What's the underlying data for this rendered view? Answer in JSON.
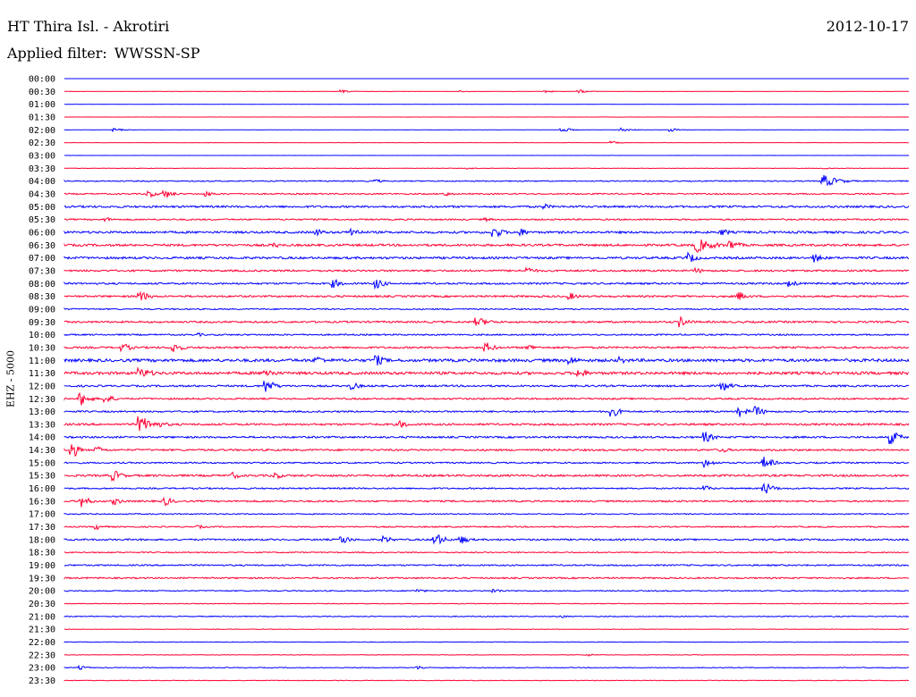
{
  "header": {
    "station": "HT Thira Isl. - Akrotiri",
    "date": "2012-10-17",
    "filter_label": "Applied filter:",
    "filter_value": "WWSSN-SP"
  },
  "colors": {
    "trace_a": "#0000ff",
    "trace_b": "#ff0033",
    "text": "#000000",
    "background": "#ffffff"
  },
  "chart_data": {
    "type": "line",
    "ylabel": "EHZ - 5000",
    "color_pattern": "alternating rows, blue for rows starting :00, red for rows starting :30",
    "categories": [
      "00:00",
      "00:30",
      "01:00",
      "01:30",
      "02:00",
      "02:30",
      "03:00",
      "03:30",
      "04:00",
      "04:30",
      "05:00",
      "05:30",
      "06:00",
      "06:30",
      "07:00",
      "07:30",
      "08:00",
      "08:30",
      "09:00",
      "09:30",
      "10:00",
      "10:30",
      "11:00",
      "11:30",
      "12:00",
      "12:30",
      "13:00",
      "13:30",
      "14:00",
      "14:30",
      "15:00",
      "15:30",
      "16:00",
      "16:30",
      "17:00",
      "17:30",
      "18:00",
      "18:30",
      "19:00",
      "19:30",
      "20:00",
      "20:30",
      "21:00",
      "21:30",
      "22:00",
      "22:30",
      "23:00",
      "23:30"
    ],
    "series": [
      {
        "label": "00:00",
        "noise": 0.05
      },
      {
        "label": "00:30",
        "noise": 0.15,
        "events": [
          {
            "t": 0.33,
            "amp": 1.5
          },
          {
            "t": 0.47,
            "amp": 1
          },
          {
            "t": 0.57,
            "amp": 1.5
          },
          {
            "t": 0.61,
            "amp": 2
          }
        ]
      },
      {
        "label": "01:00",
        "noise": 0.05
      },
      {
        "label": "01:30",
        "noise": 0.1
      },
      {
        "label": "02:00",
        "noise": 0.1,
        "events": [
          {
            "t": 0.06,
            "amp": 2
          },
          {
            "t": 0.59,
            "amp": 3
          },
          {
            "t": 0.66,
            "amp": 2.5
          },
          {
            "t": 0.72,
            "amp": 2
          }
        ]
      },
      {
        "label": "02:30",
        "noise": 0.15,
        "events": [
          {
            "t": 0.65,
            "amp": 1.5
          }
        ]
      },
      {
        "label": "03:00",
        "noise": 0.05
      },
      {
        "label": "03:30",
        "noise": 0.25,
        "events": [
          {
            "t": 0.48,
            "amp": 1
          },
          {
            "t": 0.9,
            "amp": 1
          }
        ]
      },
      {
        "label": "04:00",
        "noise": 0.6,
        "events": [
          {
            "t": 0.37,
            "amp": 2
          },
          {
            "t": 0.9,
            "amp": 7,
            "w": 0.05
          }
        ]
      },
      {
        "label": "04:30",
        "noise": 0.7,
        "events": [
          {
            "t": 0.1,
            "amp": 4
          },
          {
            "t": 0.12,
            "amp": 5
          },
          {
            "t": 0.17,
            "amp": 3
          },
          {
            "t": 0.45,
            "amp": 3
          }
        ]
      },
      {
        "label": "05:00",
        "noise": 1.1,
        "events": [
          {
            "t": 0.57,
            "amp": 3
          }
        ]
      },
      {
        "label": "05:30",
        "noise": 0.8,
        "events": [
          {
            "t": 0.05,
            "amp": 2.5
          },
          {
            "t": 0.5,
            "amp": 2
          }
        ]
      },
      {
        "label": "06:00",
        "noise": 1.2,
        "events": [
          {
            "t": 0.3,
            "amp": 4
          },
          {
            "t": 0.34,
            "amp": 6
          },
          {
            "t": 0.51,
            "amp": 7
          },
          {
            "t": 0.54,
            "amp": 5
          },
          {
            "t": 0.78,
            "amp": 4
          }
        ]
      },
      {
        "label": "06:30",
        "noise": 1.2,
        "events": [
          {
            "t": 0.25,
            "amp": 3
          },
          {
            "t": 0.75,
            "amp": 8,
            "w": 0.06
          },
          {
            "t": 0.79,
            "amp": 6
          }
        ]
      },
      {
        "label": "07:00",
        "noise": 1.2,
        "events": [
          {
            "t": 0.74,
            "amp": 6
          },
          {
            "t": 0.89,
            "amp": 5
          }
        ]
      },
      {
        "label": "07:30",
        "noise": 1,
        "events": [
          {
            "t": 0.55,
            "amp": 4
          },
          {
            "t": 0.75,
            "amp": 3
          }
        ]
      },
      {
        "label": "08:00",
        "noise": 1,
        "events": [
          {
            "t": 0.32,
            "amp": 5
          },
          {
            "t": 0.37,
            "amp": 6
          },
          {
            "t": 0.86,
            "amp": 4
          }
        ]
      },
      {
        "label": "08:30",
        "noise": 1,
        "events": [
          {
            "t": 0.09,
            "amp": 7
          },
          {
            "t": 0.6,
            "amp": 4
          },
          {
            "t": 0.8,
            "amp": 5
          }
        ]
      },
      {
        "label": "09:00",
        "noise": 0.7
      },
      {
        "label": "09:30",
        "noise": 1,
        "events": [
          {
            "t": 0.49,
            "amp": 5,
            "w": 0.05
          },
          {
            "t": 0.73,
            "amp": 6
          }
        ]
      },
      {
        "label": "10:00",
        "noise": 0.8,
        "events": [
          {
            "t": 0.16,
            "amp": 2
          }
        ]
      },
      {
        "label": "10:30",
        "noise": 1,
        "events": [
          {
            "t": 0.07,
            "amp": 5
          },
          {
            "t": 0.13,
            "amp": 6
          },
          {
            "t": 0.5,
            "amp": 6
          },
          {
            "t": 0.55,
            "amp": 4
          }
        ]
      },
      {
        "label": "11:00",
        "noise": 1.6,
        "events": [
          {
            "t": 0.3,
            "amp": 5
          },
          {
            "t": 0.37,
            "amp": 7
          },
          {
            "t": 0.6,
            "amp": 5
          },
          {
            "t": 0.66,
            "amp": 4
          }
        ]
      },
      {
        "label": "11:30",
        "noise": 1.5,
        "events": [
          {
            "t": 0.09,
            "amp": 6,
            "w": 0.05
          },
          {
            "t": 0.24,
            "amp": 6
          },
          {
            "t": 0.61,
            "amp": 6
          }
        ]
      },
      {
        "label": "12:00",
        "noise": 1,
        "events": [
          {
            "t": 0.24,
            "amp": 8,
            "w": 0.03
          },
          {
            "t": 0.34,
            "amp": 5
          },
          {
            "t": 0.78,
            "amp": 6
          }
        ]
      },
      {
        "label": "12:30",
        "noise": 0.9,
        "events": [
          {
            "t": 0.02,
            "amp": 8
          },
          {
            "t": 0.05,
            "amp": 5
          }
        ]
      },
      {
        "label": "13:00",
        "noise": 0.9,
        "events": [
          {
            "t": 0.65,
            "amp": 6
          },
          {
            "t": 0.8,
            "amp": 6
          },
          {
            "t": 0.82,
            "amp": 6
          }
        ]
      },
      {
        "label": "13:30",
        "noise": 1.1,
        "events": [
          {
            "t": 0.09,
            "amp": 9,
            "w": 0.06
          },
          {
            "t": 0.4,
            "amp": 4
          }
        ]
      },
      {
        "label": "14:00",
        "noise": 1,
        "events": [
          {
            "t": 0.76,
            "amp": 6
          },
          {
            "t": 0.98,
            "amp": 8
          }
        ]
      },
      {
        "label": "14:30",
        "noise": 1,
        "events": [
          {
            "t": 0.01,
            "amp": 10,
            "w": 0.02
          },
          {
            "t": 0.04,
            "amp": 4
          },
          {
            "t": 0.78,
            "amp": 3
          }
        ]
      },
      {
        "label": "15:00",
        "noise": 0.8,
        "events": [
          {
            "t": 0.76,
            "amp": 5
          },
          {
            "t": 0.83,
            "amp": 7
          }
        ]
      },
      {
        "label": "15:30",
        "noise": 1.1,
        "events": [
          {
            "t": 0.06,
            "amp": 6
          },
          {
            "t": 0.2,
            "amp": 4
          },
          {
            "t": 0.25,
            "amp": 4
          }
        ]
      },
      {
        "label": "16:00",
        "noise": 0.8,
        "events": [
          {
            "t": 0.76,
            "amp": 3
          },
          {
            "t": 0.83,
            "amp": 7
          }
        ]
      },
      {
        "label": "16:30",
        "noise": 0.9,
        "events": [
          {
            "t": 0.02,
            "amp": 7
          },
          {
            "t": 0.06,
            "amp": 4
          },
          {
            "t": 0.12,
            "amp": 5
          }
        ]
      },
      {
        "label": "17:00",
        "noise": 0.6
      },
      {
        "label": "17:30",
        "noise": 0.7,
        "events": [
          {
            "t": 0.04,
            "amp": 3
          },
          {
            "t": 0.16,
            "amp": 2
          }
        ]
      },
      {
        "label": "18:00",
        "noise": 0.9,
        "events": [
          {
            "t": 0.33,
            "amp": 5
          },
          {
            "t": 0.38,
            "amp": 4
          },
          {
            "t": 0.44,
            "amp": 8
          },
          {
            "t": 0.47,
            "amp": 5
          }
        ]
      },
      {
        "label": "18:30",
        "noise": 0.6
      },
      {
        "label": "19:00",
        "noise": 0.8
      },
      {
        "label": "19:30",
        "noise": 0.8
      },
      {
        "label": "20:00",
        "noise": 0.6,
        "events": [
          {
            "t": 0.42,
            "amp": 2
          },
          {
            "t": 0.51,
            "amp": 2.5
          }
        ]
      },
      {
        "label": "20:30",
        "noise": 0.4
      },
      {
        "label": "21:00",
        "noise": 0.5,
        "events": [
          {
            "t": 0.59,
            "amp": 1.5
          }
        ]
      },
      {
        "label": "21:30",
        "noise": 0.3
      },
      {
        "label": "22:00",
        "noise": 0.3
      },
      {
        "label": "22:30",
        "noise": 0.3,
        "events": [
          {
            "t": 0.62,
            "amp": 1.5
          }
        ]
      },
      {
        "label": "23:00",
        "noise": 0.4,
        "events": [
          {
            "t": 0.02,
            "amp": 2
          },
          {
            "t": 0.42,
            "amp": 2
          }
        ]
      },
      {
        "label": "23:30",
        "noise": 0.3
      }
    ]
  }
}
